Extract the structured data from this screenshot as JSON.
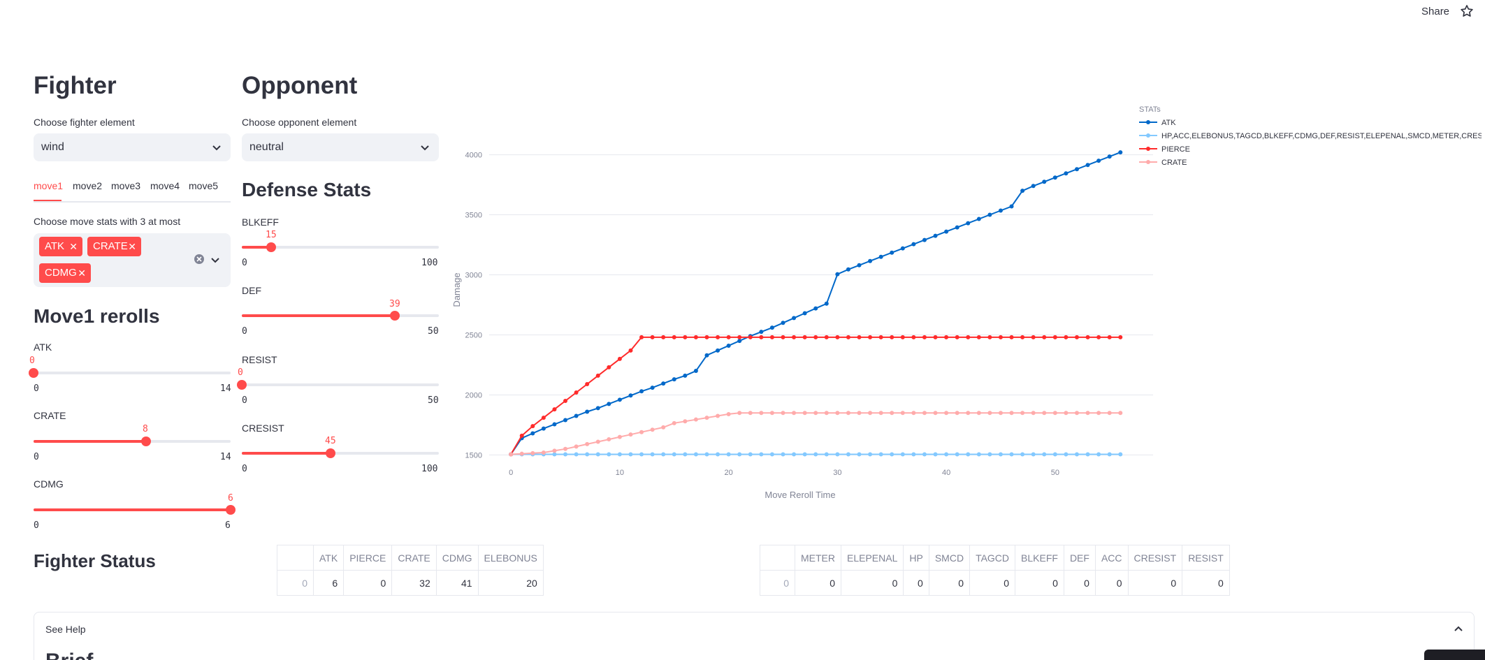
{
  "header": {
    "share_label": "Share",
    "icon": "star-icon"
  },
  "fighter": {
    "title": "Fighter",
    "element_label": "Choose fighter element",
    "element_value": "wind",
    "tabs": [
      "move1",
      "move2",
      "move3",
      "move4",
      "move5"
    ],
    "active_tab": "move1",
    "stats_label": "Choose move stats with 3 at most",
    "chips": [
      "ATK",
      "CRATE",
      "CDMG"
    ],
    "rerolls_title": "Move1 rerolls",
    "sliders": [
      {
        "label": "ATK",
        "value": "0",
        "min": "0",
        "max": "14"
      },
      {
        "label": "CRATE",
        "value": "8",
        "min": "0",
        "max": "14"
      },
      {
        "label": "CDMG",
        "value": "6",
        "min": "0",
        "max": "6"
      }
    ]
  },
  "opponent": {
    "title": "Opponent",
    "element_label": "Choose opponent element",
    "element_value": "neutral",
    "defense_title": "Defense Stats",
    "sliders": [
      {
        "label": "BLKEFF",
        "value": "15",
        "min": "0",
        "max": "100"
      },
      {
        "label": "DEF",
        "value": "39",
        "min": "0",
        "max": "50"
      },
      {
        "label": "RESIST",
        "value": "0",
        "min": "0",
        "max": "50"
      },
      {
        "label": "CRESIST",
        "value": "45",
        "min": "0",
        "max": "100"
      }
    ]
  },
  "chart_data": {
    "type": "line",
    "title": "",
    "xlabel": "Move Reroll Time",
    "ylabel": "Damage",
    "xlim": [
      -2,
      59
    ],
    "ylim": [
      1450,
      4300
    ],
    "xticks": [
      0,
      10,
      20,
      30,
      40,
      50
    ],
    "yticks": [
      1500,
      2000,
      2500,
      3000,
      3500,
      4000
    ],
    "grid": true,
    "legend_title": "STATs",
    "legend_position": "right",
    "series": [
      {
        "name": "ATK",
        "color": "#0068c9",
        "x": [
          0,
          1,
          2,
          3,
          4,
          5,
          6,
          7,
          8,
          9,
          10,
          11,
          12,
          13,
          14,
          15,
          16,
          17,
          18,
          19,
          20,
          21,
          22,
          23,
          24,
          25,
          26,
          27,
          28,
          29,
          30,
          31,
          32,
          33,
          34,
          35,
          36,
          37,
          38,
          39,
          40,
          41,
          42,
          43,
          44,
          45,
          46,
          47,
          48,
          49,
          50,
          51,
          52,
          53,
          54,
          55,
          56
        ],
        "y": [
          1505,
          1640,
          1680,
          1720,
          1755,
          1790,
          1825,
          1860,
          1890,
          1925,
          1960,
          1995,
          2030,
          2060,
          2095,
          2130,
          2160,
          2200,
          2330,
          2370,
          2410,
          2450,
          2490,
          2525,
          2560,
          2600,
          2640,
          2680,
          2720,
          2760,
          3005,
          3045,
          3080,
          3115,
          3150,
          3185,
          3220,
          3255,
          3290,
          3325,
          3360,
          3395,
          3430,
          3465,
          3500,
          3535,
          3570,
          3700,
          3740,
          3775,
          3810,
          3845,
          3880,
          3915,
          3950,
          3985,
          4020
        ]
      },
      {
        "name": "HP,ACC,ELEBONUS,TAGCD,BLKEFF,CDMG,DEF,RESIST,ELEPENAL,SMCD,METER,CRESIST",
        "color": "#83c9ff",
        "x": [
          0,
          1,
          2,
          3,
          4,
          5,
          6,
          7,
          8,
          9,
          10,
          11,
          12,
          13,
          14,
          15,
          16,
          17,
          18,
          19,
          20,
          21,
          22,
          23,
          24,
          25,
          26,
          27,
          28,
          29,
          30,
          31,
          32,
          33,
          34,
          35,
          36,
          37,
          38,
          39,
          40,
          41,
          42,
          43,
          44,
          45,
          46,
          47,
          48,
          49,
          50,
          51,
          52,
          53,
          54,
          55,
          56
        ],
        "y": [
          1505,
          1505,
          1505,
          1505,
          1505,
          1505,
          1505,
          1505,
          1505,
          1505,
          1505,
          1505,
          1505,
          1505,
          1505,
          1505,
          1505,
          1505,
          1505,
          1505,
          1505,
          1505,
          1505,
          1505,
          1505,
          1505,
          1505,
          1505,
          1505,
          1505,
          1505,
          1505,
          1505,
          1505,
          1505,
          1505,
          1505,
          1505,
          1505,
          1505,
          1505,
          1505,
          1505,
          1505,
          1505,
          1505,
          1505,
          1505,
          1505,
          1505,
          1505,
          1505,
          1505,
          1505,
          1505,
          1505,
          1505
        ]
      },
      {
        "name": "PIERCE",
        "color": "#ff2b2b",
        "x": [
          0,
          1,
          2,
          3,
          4,
          5,
          6,
          7,
          8,
          9,
          10,
          11,
          12,
          13,
          14,
          15,
          16,
          17,
          18,
          19,
          20,
          21,
          22,
          23,
          24,
          25,
          26,
          27,
          28,
          29,
          30,
          31,
          32,
          33,
          34,
          35,
          36,
          37,
          38,
          39,
          40,
          41,
          42,
          43,
          44,
          45,
          46,
          47,
          48,
          49,
          50,
          51,
          52,
          53,
          54,
          55,
          56
        ],
        "y": [
          1505,
          1660,
          1740,
          1810,
          1880,
          1950,
          2020,
          2090,
          2160,
          2230,
          2300,
          2370,
          2480,
          2480,
          2480,
          2480,
          2480,
          2480,
          2480,
          2480,
          2480,
          2480,
          2480,
          2480,
          2480,
          2480,
          2480,
          2480,
          2480,
          2480,
          2480,
          2480,
          2480,
          2480,
          2480,
          2480,
          2480,
          2480,
          2480,
          2480,
          2480,
          2480,
          2480,
          2480,
          2480,
          2480,
          2480,
          2480,
          2480,
          2480,
          2480,
          2480,
          2480,
          2480,
          2480,
          2480,
          2480
        ]
      },
      {
        "name": "CRATE",
        "color": "#ffabab",
        "x": [
          0,
          1,
          2,
          3,
          4,
          5,
          6,
          7,
          8,
          9,
          10,
          11,
          12,
          13,
          14,
          15,
          16,
          17,
          18,
          19,
          20,
          21,
          22,
          23,
          24,
          25,
          26,
          27,
          28,
          29,
          30,
          31,
          32,
          33,
          34,
          35,
          36,
          37,
          38,
          39,
          40,
          41,
          42,
          43,
          44,
          45,
          46,
          47,
          48,
          49,
          50,
          51,
          52,
          53,
          54,
          55,
          56
        ],
        "y": [
          1505,
          1510,
          1515,
          1520,
          1535,
          1550,
          1570,
          1590,
          1610,
          1630,
          1650,
          1670,
          1690,
          1710,
          1730,
          1765,
          1780,
          1795,
          1810,
          1825,
          1840,
          1850,
          1850,
          1850,
          1850,
          1850,
          1850,
          1850,
          1850,
          1850,
          1850,
          1850,
          1850,
          1850,
          1850,
          1850,
          1850,
          1850,
          1850,
          1850,
          1850,
          1850,
          1850,
          1850,
          1850,
          1850,
          1850,
          1850,
          1850,
          1850,
          1850,
          1850,
          1850,
          1850,
          1850,
          1850,
          1850
        ]
      }
    ]
  },
  "status": {
    "title": "Fighter Status",
    "table1": {
      "columns": [
        "ATK",
        "PIERCE",
        "CRATE",
        "CDMG",
        "ELEBONUS"
      ],
      "index": "0",
      "values": [
        "6",
        "0",
        "32",
        "41",
        "20"
      ]
    },
    "table2": {
      "columns": [
        "METER",
        "ELEPENAL",
        "HP",
        "SMCD",
        "TAGCD",
        "BLKEFF",
        "DEF",
        "ACC",
        "CRESIST",
        "RESIST"
      ],
      "index": "0",
      "values": [
        "0",
        "0",
        "0",
        "0",
        "0",
        "0",
        "0",
        "0",
        "0",
        "0"
      ]
    }
  },
  "help": {
    "expander_label": "See Help",
    "section_title": "Brief"
  }
}
